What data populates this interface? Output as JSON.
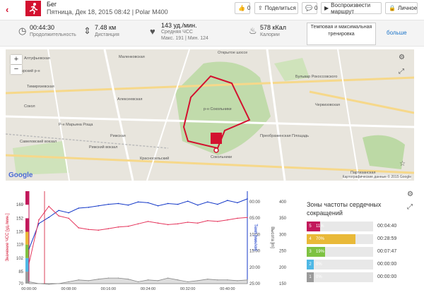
{
  "header": {
    "title": "Бег",
    "subtitle": "Пятница, Дек 18, 2015 08:42 | Polar M400",
    "like_count": "0",
    "share_label": "Поделиться",
    "comments_count": "0",
    "replay_label": "Воспроизвести маршрут",
    "privacy_label": "Личное"
  },
  "stats": {
    "duration": {
      "value": "00:44:30",
      "label": "Продолжительность"
    },
    "distance": {
      "value": "7.48 км",
      "label": "Дистанция"
    },
    "hr": {
      "value": "143 уд./мин.",
      "label": "Средняя ЧСС",
      "max": "Макс. 191",
      "min": "Мин. 124"
    },
    "calories": {
      "value": "578 кКал",
      "label": "Калории"
    },
    "training_button": "Темповая и максимальная тренировка",
    "more_link": "больше"
  },
  "map": {
    "labels": [
      "Открытое шоссе",
      "Маленковская",
      "Бутырский р-н",
      "Алексеевская",
      "р-н Сокольники",
      "Р-н Марьина Роща",
      "Савеловский вокзал",
      "Рижская",
      "Красносельский",
      "Рижский вокзал",
      "Сокольники",
      "Бульвар Рокоссовского",
      "Черкизовская",
      "Преображенская Площадь",
      "Партизанская",
      "Алтуфьевская",
      "Тимирязевская",
      "Сокол"
    ],
    "attribution": "Картографические данные © 2015 Google",
    "google": "Google"
  },
  "chart_data": {
    "type": "line",
    "x": [
      "00:00:00",
      "00:02:00",
      "00:04:00",
      "00:06:00",
      "00:08:00",
      "00:10:00",
      "00:12:00",
      "00:14:00",
      "00:16:00",
      "00:18:00",
      "00:20:00",
      "00:22:00",
      "00:24:00",
      "00:26:00",
      "00:28:00",
      "00:30:00",
      "00:32:00",
      "00:34:00",
      "00:36:00",
      "00:38:00",
      "00:40:00",
      "00:42:00",
      "00:44:00"
    ],
    "x_tick_labels": [
      "00:00:00",
      "00:08:00",
      "00:16:00",
      "00:24:00",
      "00:32:00",
      "00:40:00"
    ],
    "series": [
      {
        "name": "hr",
        "axis": "left",
        "color": "#e5355c",
        "values": [
          95,
          150,
          167,
          155,
          152,
          140,
          138,
          137,
          139,
          141,
          142,
          145,
          148,
          146,
          144,
          145,
          147,
          146,
          149,
          148,
          150,
          152,
          153
        ]
      },
      {
        "name": "speed",
        "axis": "right",
        "color": "#1438c8",
        "values": [
          4.5,
          7.8,
          8.6,
          9.5,
          9.2,
          9.8,
          9.9,
          10.1,
          10.3,
          10.4,
          10.2,
          10.6,
          10.5,
          10.1,
          10.4,
          10.3,
          10.7,
          10.2,
          10.6,
          10.3,
          10.8,
          10.5,
          11
        ]
      },
      {
        "name": "altitude",
        "axis": "far-right",
        "color": "#888888",
        "values": [
          155,
          150,
          148,
          150,
          155,
          160,
          158,
          162,
          165,
          165,
          162,
          155,
          160,
          158,
          165,
          160,
          155,
          158,
          162,
          160,
          160,
          158,
          160
        ]
      }
    ],
    "left_axis": {
      "label": "Значение ЧСС [уд./мин.]",
      "ticks": [
        70,
        85,
        102,
        119,
        135,
        152,
        169
      ],
      "range": [
        70,
        186
      ]
    },
    "right_axis": {
      "label": "Темп [мин/км]",
      "ticks": [
        "00:00",
        "05:00",
        "10:00",
        "15:00",
        "20:00",
        "25:00"
      ]
    },
    "far_right_axis": {
      "label": "Высота [m]",
      "ticks": [
        150,
        200,
        250,
        300,
        350,
        400
      ]
    },
    "zone_band_colors": [
      "#9a9a9a",
      "#4fb8e5",
      "#7ec242",
      "#e9b938",
      "#c2185b"
    ]
  },
  "zones": {
    "title_line1": "Зоны частоты сердечных",
    "title_line2": "сокращений",
    "items": [
      {
        "zone": "5",
        "percent": 11,
        "label": "11%",
        "time": "00:04:40",
        "color": "#c2185b"
      },
      {
        "zone": "4",
        "percent": 70,
        "label": "70%",
        "time": "00:28:59",
        "color": "#e9b938"
      },
      {
        "zone": "3",
        "percent": 19,
        "label": "19%",
        "time": "00:07:47",
        "color": "#7ec242"
      },
      {
        "zone": "2",
        "percent": 0,
        "label": "0%",
        "time": "00:00:00",
        "color": "#4fb8e5"
      },
      {
        "zone": "1",
        "percent": 0,
        "label": "0%",
        "time": "00:00:00",
        "color": "#9a9a9a"
      }
    ]
  }
}
